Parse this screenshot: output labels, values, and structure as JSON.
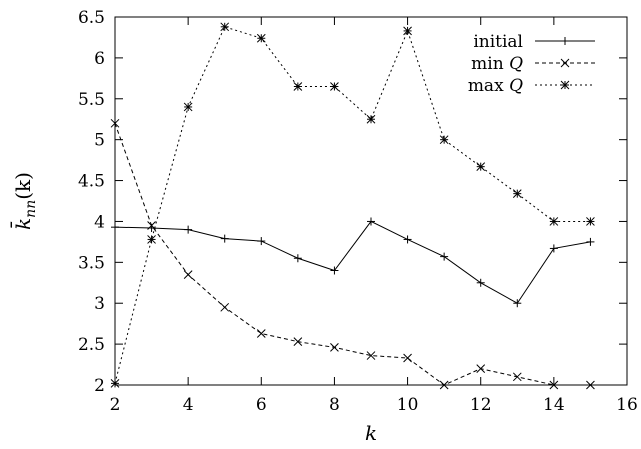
{
  "chart_data": {
    "type": "line",
    "title": "",
    "xlabel": "k",
    "ylabel": "k̄nn(k)",
    "ylabel_parts": {
      "base": "k̄",
      "sub": "nn",
      "arg": "(k)"
    },
    "xlim": [
      2,
      16
    ],
    "ylim": [
      2,
      6.5
    ],
    "xticks": [
      2,
      4,
      6,
      8,
      10,
      12,
      14,
      16
    ],
    "yticks": [
      2,
      2.5,
      3,
      3.5,
      4,
      4.5,
      5,
      5.5,
      6,
      6.5
    ],
    "grid": false,
    "legend_position": "top-right",
    "series": [
      {
        "name": "initial",
        "legend_parts": {
          "text": "initial",
          "var": ""
        },
        "marker": "plus",
        "dash": "solid",
        "x": [
          2,
          3,
          4,
          5,
          6,
          7,
          8,
          9,
          10,
          11,
          12,
          13,
          14,
          15
        ],
        "y": [
          3.93,
          3.92,
          3.9,
          3.79,
          3.76,
          3.55,
          3.4,
          4.0,
          3.78,
          3.57,
          3.25,
          3.0,
          3.67,
          3.75
        ]
      },
      {
        "name": "min Q",
        "legend_parts": {
          "text": "min ",
          "var": "Q"
        },
        "marker": "cross",
        "dash": "dashed",
        "x": [
          2,
          3,
          4,
          5,
          6,
          7,
          8,
          9,
          10,
          11,
          12,
          13,
          14,
          15
        ],
        "y": [
          5.2,
          3.95,
          3.35,
          2.95,
          2.63,
          2.53,
          2.46,
          2.36,
          2.33,
          2.0,
          2.2,
          2.1,
          2.0,
          2.0
        ]
      },
      {
        "name": "max Q",
        "legend_parts": {
          "text": "max ",
          "var": "Q"
        },
        "marker": "asterisk",
        "dash": "dotted",
        "x": [
          2,
          3,
          4,
          5,
          6,
          7,
          8,
          9,
          10,
          11,
          12,
          13,
          14,
          15
        ],
        "y": [
          2.02,
          3.78,
          5.4,
          6.38,
          6.24,
          5.65,
          5.65,
          5.25,
          6.33,
          5.0,
          4.67,
          4.34,
          4.0,
          4.0
        ]
      }
    ]
  }
}
